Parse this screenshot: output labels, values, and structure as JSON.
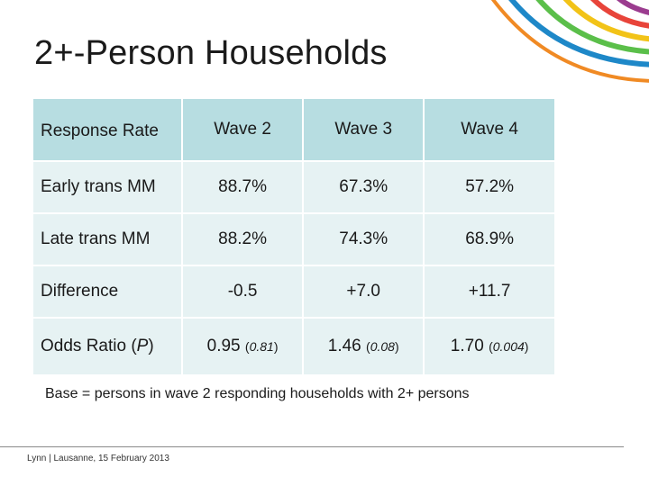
{
  "slide": {
    "title": "2+-Person Households",
    "footnote": "Base = persons in wave 2 responding households with 2+ persons",
    "footer": "Lynn | Lausanne, 15 February 2013"
  },
  "table": {
    "headers": [
      "Response Rate",
      "Wave 2",
      "Wave 3",
      "Wave 4"
    ],
    "rows": [
      {
        "label": "Early trans MM",
        "values": [
          "88.7%",
          "67.3%",
          "57.2%"
        ]
      },
      {
        "label": "Late trans MM",
        "values": [
          "88.2%",
          "74.3%",
          "68.9%"
        ]
      },
      {
        "label": "Difference",
        "values": [
          "-0.5",
          "+7.0",
          "+11.7"
        ]
      }
    ],
    "odds_row": {
      "label_prefix": "Odds Ratio (",
      "label_italic": "P",
      "label_suffix": ")",
      "cells": [
        {
          "value": "0.95",
          "p_open": "(",
          "p": "0.81",
          "p_close": ")"
        },
        {
          "value": "1.46",
          "p_open": "(",
          "p": "0.08",
          "p_close": ")"
        },
        {
          "value": "1.70",
          "p_open": "(",
          "p": "0.004",
          "p_close": ")"
        }
      ]
    }
  },
  "colors": {
    "header_fill": "#b7dde1",
    "row_fill": "#e6f2f3",
    "arc_colors": [
      "#1e88c8",
      "#5bbf4a",
      "#f2c318",
      "#e8443a",
      "#9b3c8f",
      "#f08a24"
    ]
  },
  "icons": {
    "decoration": "colored-arcs-logo"
  }
}
